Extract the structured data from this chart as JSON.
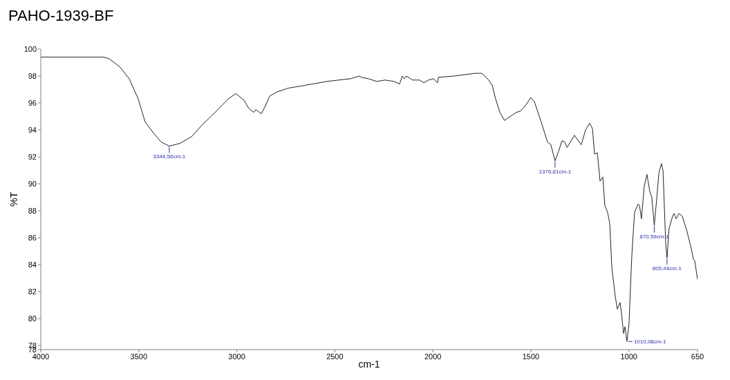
{
  "chart_data": {
    "type": "line",
    "title": "PAHO-1939-BF",
    "xlabel": "cm-1",
    "ylabel": "%T",
    "xlim": [
      4000,
      650
    ],
    "xticks": [
      4000,
      3500,
      3000,
      2500,
      2000,
      1500,
      1000,
      650
    ],
    "ylim": [
      77.7,
      100
    ],
    "yticks": [
      100,
      98,
      96,
      94,
      92,
      90,
      88,
      86,
      84,
      82,
      80,
      78,
      {
        "value": 77.7,
        "label": "78"
      }
    ],
    "series": [
      {
        "color": "#222222",
        "x": [
          4000,
          3900,
          3800,
          3679,
          3654,
          3598,
          3549,
          3503,
          3468,
          3432,
          3386,
          3344.56,
          3291,
          3231,
          3175,
          3104,
          3044,
          3005,
          2963,
          2939,
          2914,
          2903,
          2875,
          2857,
          2833,
          2798,
          2738,
          2656,
          2540,
          2420,
          2374,
          2364,
          2329,
          2286,
          2244,
          2198,
          2170,
          2156,
          2145,
          2135,
          2103,
          2068,
          2046,
          2022,
          1997,
          1976,
          1972,
          1891,
          1785,
          1750,
          1715,
          1697,
          1680,
          1658,
          1634,
          1616,
          1574,
          1553,
          1528,
          1500,
          1482,
          1450,
          1415,
          1398,
          1376.81,
          1359,
          1341,
          1327,
          1316,
          1306,
          1278,
          1243,
          1221,
          1200,
          1186,
          1175,
          1161,
          1147,
          1133,
          1123,
          1109,
          1098,
          1087,
          1070,
          1059,
          1045,
          1038,
          1027,
          1020,
          1010.08,
          1000,
          985,
          971,
          953,
          946,
          936,
          922,
          908,
          893,
          883,
          870.59,
          858,
          847,
          834,
          826,
          812,
          805.44,
          795,
          777,
          770,
          759,
          745,
          728,
          706,
          682,
          671,
          664,
          650
        ],
        "values": [
          99.4,
          99.4,
          99.4,
          99.4,
          99.3,
          98.7,
          97.8,
          96.3,
          94.6,
          93.9,
          93.1,
          92.8,
          93.0,
          93.5,
          94.4,
          95.4,
          96.3,
          96.7,
          96.2,
          95.6,
          95.3,
          95.5,
          95.2,
          95.7,
          96.5,
          96.8,
          97.1,
          97.3,
          97.6,
          97.8,
          98.0,
          97.9,
          97.8,
          97.6,
          97.7,
          97.6,
          97.4,
          98.0,
          97.8,
          98.0,
          97.7,
          97.7,
          97.5,
          97.7,
          97.8,
          97.5,
          97.9,
          98.0,
          98.2,
          98.2,
          97.7,
          97.3,
          96.3,
          95.3,
          94.7,
          94.9,
          95.3,
          95.4,
          95.8,
          96.4,
          96.1,
          94.7,
          93.1,
          92.9,
          91.7,
          92.4,
          93.2,
          93.1,
          92.7,
          92.9,
          93.6,
          92.9,
          94.0,
          94.5,
          94.1,
          92.2,
          92.3,
          90.2,
          90.5,
          88.4,
          87.9,
          87.1,
          83.8,
          81.7,
          80.7,
          81.2,
          80.4,
          78.9,
          79.4,
          78.3,
          79.5,
          84.7,
          87.9,
          88.5,
          88.4,
          87.4,
          89.8,
          90.7,
          89.4,
          89.0,
          86.9,
          88.9,
          90.8,
          91.5,
          91.0,
          85.5,
          84.5,
          86.7,
          87.6,
          87.8,
          87.4,
          87.8,
          87.6,
          86.6,
          85.2,
          84.4,
          84.3,
          82.9
        ]
      }
    ],
    "annotations": [
      {
        "text": "3344,56cm-1",
        "x": 3344.56,
        "y": 92.8
      },
      {
        "text": "1376,81cm-1",
        "x": 1376.81,
        "y": 91.7
      },
      {
        "text": "1010,08cm-1",
        "x": 1010.08,
        "y": 78.3
      },
      {
        "text": "870,59cm-1",
        "x": 870.59,
        "y": 86.9
      },
      {
        "text": "805,44cm-1",
        "x": 805.44,
        "y": 84.5
      }
    ]
  }
}
